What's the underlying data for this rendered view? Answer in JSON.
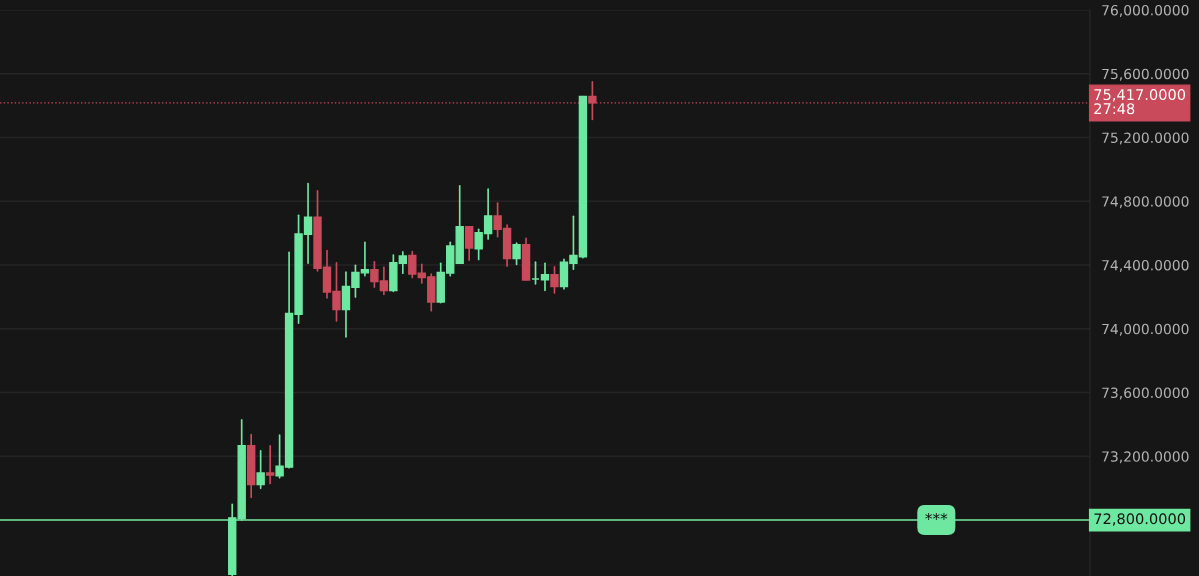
{
  "chart_data": {
    "type": "candlestick",
    "categories": [
      null,
      null,
      null,
      null,
      null,
      null,
      null,
      null,
      null,
      null,
      null,
      null,
      null,
      null,
      null,
      null,
      null,
      null,
      null,
      null,
      null,
      null,
      null,
      null,
      null,
      null,
      null,
      null,
      null,
      null,
      null,
      null,
      null,
      null,
      null,
      null,
      null,
      null,
      null,
      null,
      null,
      null,
      null,
      null,
      null,
      null,
      null,
      null,
      null,
      null,
      null,
      null,
      null,
      null,
      null,
      null,
      null,
      null,
      null,
      null,
      null,
      null,
      null,
      null,
      null,
      null,
      null,
      null,
      null,
      null,
      null,
      null,
      null,
      null,
      null,
      null,
      null,
      null,
      null,
      null,
      null,
      null,
      null,
      null,
      null,
      null,
      null,
      null,
      null,
      null,
      null,
      null,
      null,
      null,
      null,
      null,
      null,
      null,
      null,
      null,
      null,
      null,
      null,
      null,
      null,
      null,
      null,
      null,
      null,
      null,
      null,
      null,
      null,
      null,
      null
    ],
    "ohlc": [
      null,
      null,
      null,
      null,
      null,
      null,
      null,
      null,
      null,
      null,
      null,
      null,
      null,
      null,
      null,
      null,
      null,
      null,
      null,
      null,
      null,
      null,
      null,
      null,
      [
        72460,
        72898,
        72450,
        72814
      ],
      [
        72810,
        73428,
        72800,
        73266
      ],
      [
        73266,
        73337,
        72943,
        73023
      ],
      [
        73023,
        73235,
        72999,
        73095
      ],
      [
        73095,
        73266,
        73030,
        73083
      ],
      [
        73077,
        73333,
        73065,
        73138
      ],
      [
        73132,
        74480,
        73128,
        74097
      ],
      [
        74091,
        74712,
        74035,
        74595
      ],
      [
        74593,
        74911,
        74411,
        74700
      ],
      [
        74700,
        74866,
        74363,
        74380
      ],
      [
        74386,
        74491,
        74193,
        74230
      ],
      [
        74234,
        74414,
        74049,
        74121
      ],
      [
        74121,
        74355,
        73949,
        74265
      ],
      [
        74261,
        74398,
        74199,
        74353
      ],
      [
        74351,
        74542,
        74332,
        74371
      ],
      [
        74371,
        74420,
        74261,
        74296
      ],
      [
        74300,
        74386,
        74215,
        74240
      ],
      [
        74240,
        74463,
        74234,
        74414
      ],
      [
        74411,
        74482,
        74349,
        74457
      ],
      [
        74460,
        74484,
        74320,
        74343
      ],
      [
        74349,
        74404,
        74287,
        74322
      ],
      [
        74326,
        74343,
        74113,
        74168
      ],
      [
        74168,
        74411,
        74164,
        74353
      ],
      [
        74349,
        74543,
        74332,
        74519
      ],
      [
        74411,
        74897,
        74411,
        74640
      ],
      [
        74640,
        74640,
        74431,
        74507
      ],
      [
        74502,
        74624,
        74435,
        74603
      ],
      [
        74597,
        74876,
        74564,
        74708
      ],
      [
        74708,
        74788,
        74578,
        74624
      ],
      [
        74630,
        74651,
        74394,
        74441
      ],
      [
        74441,
        74537,
        74404,
        74527
      ],
      [
        74527,
        74568,
        74306,
        74306
      ],
      [
        74312,
        74418,
        74281,
        74312
      ],
      [
        74308,
        74411,
        74240,
        74339
      ],
      [
        74339,
        74389,
        74224,
        74265
      ],
      [
        74265,
        74435,
        74250,
        74418
      ],
      [
        74411,
        74706,
        74373,
        74460
      ],
      [
        74451,
        75457,
        74445,
        75457
      ],
      [
        75457,
        75549,
        75313,
        75417
      ],
      null,
      null,
      null,
      null,
      null,
      null,
      null,
      null,
      null,
      null,
      null,
      null,
      null,
      null,
      null,
      null,
      null,
      null,
      null,
      null,
      null,
      null,
      null,
      null,
      null,
      null,
      null,
      null,
      null,
      null,
      null,
      null,
      null,
      null,
      null,
      null,
      null,
      null,
      null,
      null,
      null,
      null,
      null,
      null,
      null,
      null,
      null,
      null,
      null,
      null,
      null,
      null
    ],
    "colors": [
      null,
      null,
      null,
      null,
      null,
      null,
      null,
      null,
      null,
      null,
      null,
      null,
      null,
      null,
      null,
      null,
      null,
      null,
      null,
      null,
      null,
      null,
      null,
      null,
      "#6ee7a0",
      "#6ee7a0",
      "#c94a5a",
      "#6ee7a0",
      "#c94a5a",
      "#6ee7a0",
      "#6ee7a0",
      "#6ee7a0",
      "#6ee7a0",
      "#c94a5a",
      "#c94a5a",
      "#c94a5a",
      "#6ee7a0",
      "#6ee7a0",
      "#6ee7a0",
      "#c94a5a",
      "#c94a5a",
      "#6ee7a0",
      "#6ee7a0",
      "#c94a5a",
      "#c94a5a",
      "#c94a5a",
      "#6ee7a0",
      "#6ee7a0",
      "#6ee7a0",
      "#c94a5a",
      "#6ee7a0",
      "#6ee7a0",
      "#c94a5a",
      "#c94a5a",
      "#6ee7a0",
      "#c94a5a",
      "#6ee7a0",
      "#6ee7a0",
      "#c94a5a",
      "#6ee7a0",
      "#6ee7a0",
      "#6ee7a0",
      "#c94a5a",
      null,
      null,
      null,
      null,
      null,
      null,
      null,
      null,
      null,
      null,
      null,
      null,
      null,
      null,
      null,
      null,
      null,
      null,
      null,
      null,
      null,
      null,
      null,
      null,
      null,
      null,
      null,
      null,
      null,
      null,
      null,
      null,
      null,
      null,
      null,
      null,
      null,
      null,
      null,
      null,
      null,
      null,
      null,
      null,
      null,
      null,
      null,
      null,
      null,
      null,
      null,
      null
    ],
    "ylim": [
      72449,
      76000
    ],
    "yticks": [
      {
        "value": 72800,
        "label": null
      },
      {
        "value": 73200,
        "label": "73,200.0000"
      },
      {
        "value": 73600,
        "label": "73,600.0000"
      },
      {
        "value": 74000,
        "label": "74,000.0000"
      },
      {
        "value": 74400,
        "label": "74,400.0000"
      },
      {
        "value": 74800,
        "label": "74,800.0000"
      },
      {
        "value": 75200,
        "label": "75,200.0000"
      },
      {
        "value": 75600,
        "label": "75,600.0000"
      },
      {
        "value": 76000,
        "label": "76,000.0000"
      }
    ],
    "tick_labels": "y",
    "grid": "y",
    "ref_lines": [
      {
        "axis": "y",
        "value": 75417,
        "label": "75,417.0000\n27:48",
        "color": "#c94a5a",
        "line_style": "dotted"
      },
      {
        "axis": "y",
        "value": 72800,
        "label": "72,800.0000",
        "color": "#6ee7a0",
        "line_style": "solid"
      }
    ],
    "annotations": [
      {
        "text": "***",
        "y": 72800
      }
    ]
  }
}
